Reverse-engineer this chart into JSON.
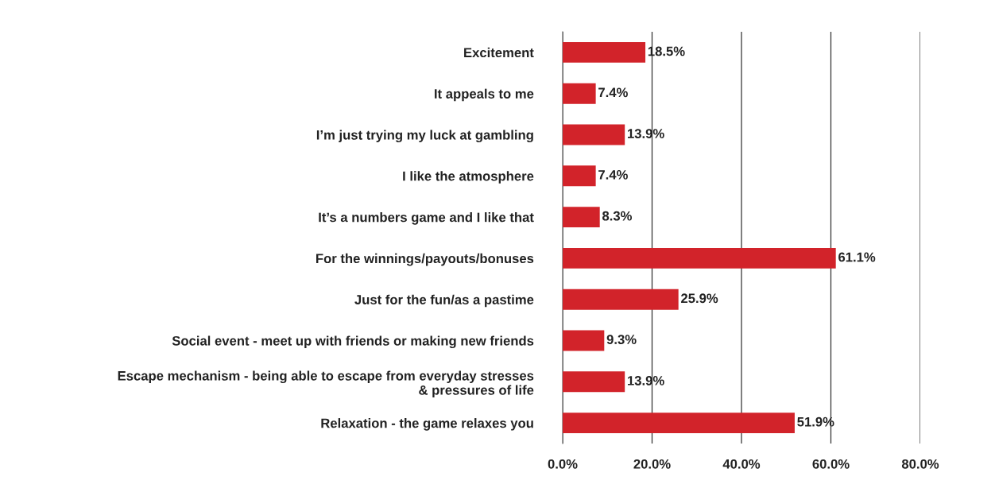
{
  "chart_data": {
    "type": "bar",
    "orientation": "horizontal",
    "categories": [
      "Excitement",
      "It appeals to me",
      "I’m just trying my luck at gambling",
      "I like the atmosphere",
      "It’s a numbers game and I like that",
      "For the winnings/payouts/bonuses",
      "Just for the fun/as a pastime",
      "Social event - meet up with friends or making new friends",
      "Escape mechanism - being able to escape from everyday stresses\n& pressures of life",
      "Relaxation - the game relaxes you"
    ],
    "values": [
      18.5,
      7.4,
      13.9,
      7.4,
      8.3,
      61.1,
      25.9,
      9.3,
      13.9,
      51.9
    ],
    "value_labels": [
      "18.5%",
      "7.4%",
      "13.9%",
      "7.4%",
      "8.3%",
      "61.1%",
      "25.9%",
      "9.3%",
      "13.9%",
      "51.9%"
    ],
    "color": "#d2232a",
    "xlim": [
      0,
      80
    ],
    "xticks": [
      {
        "value": 0,
        "label": "0.0%"
      },
      {
        "value": 20,
        "label": "20.0%"
      },
      {
        "value": 40,
        "label": "40.0%"
      },
      {
        "value": 60,
        "label": "60.0%"
      },
      {
        "value": 80,
        "label": "80.0%"
      }
    ],
    "grid": "x"
  }
}
